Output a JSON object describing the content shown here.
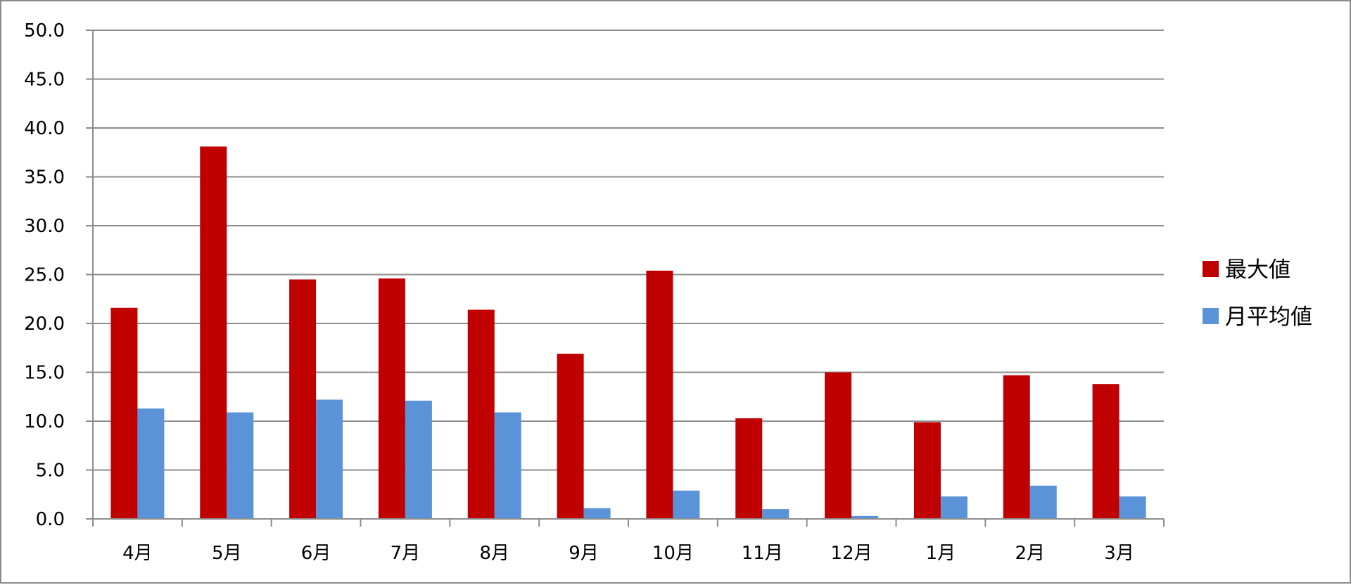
{
  "chart_data": {
    "type": "bar",
    "categories": [
      "4月",
      "5月",
      "6月",
      "7月",
      "8月",
      "9月",
      "10月",
      "11月",
      "12月",
      "1月",
      "2月",
      "3月"
    ],
    "series": [
      {
        "name": "最大値",
        "color": "#c00000",
        "values": [
          21.6,
          38.1,
          24.5,
          24.6,
          21.4,
          16.9,
          25.4,
          10.3,
          15.0,
          9.9,
          14.7,
          13.8
        ]
      },
      {
        "name": "月平均値",
        "color": "#5b93d8",
        "values": [
          11.3,
          10.9,
          12.2,
          12.1,
          10.9,
          1.1,
          2.9,
          1.0,
          0.3,
          2.3,
          3.4,
          2.3
        ]
      }
    ],
    "ylim": [
      0,
      50
    ],
    "yticks": [
      "0.0",
      "5.0",
      "10.0",
      "15.0",
      "20.0",
      "25.0",
      "30.0",
      "35.0",
      "40.0",
      "45.0",
      "50.0"
    ],
    "grid": true,
    "legend_position": "right",
    "title": "",
    "xlabel": "",
    "ylabel": ""
  }
}
